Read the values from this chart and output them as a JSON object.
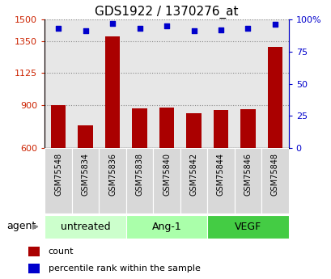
{
  "title": "GDS1922 / 1370276_at",
  "samples": [
    "GSM75548",
    "GSM75834",
    "GSM75836",
    "GSM75838",
    "GSM75840",
    "GSM75842",
    "GSM75844",
    "GSM75846",
    "GSM75848"
  ],
  "counts": [
    900,
    760,
    1380,
    875,
    880,
    845,
    865,
    870,
    1310
  ],
  "percentiles": [
    93,
    91,
    97,
    93,
    95,
    91,
    92,
    93,
    96
  ],
  "groups": [
    {
      "label": "untreated",
      "color": "#ccffcc",
      "start": 0,
      "end": 3
    },
    {
      "label": "Ang-1",
      "color": "#aaffaa",
      "start": 3,
      "end": 6
    },
    {
      "label": "VEGF",
      "color": "#44cc44",
      "start": 6,
      "end": 9
    }
  ],
  "ylim_left": [
    600,
    1500
  ],
  "yticks_left": [
    600,
    900,
    1125,
    1350,
    1500
  ],
  "ylim_right": [
    0,
    100
  ],
  "yticks_right": [
    0,
    25,
    50,
    75,
    100
  ],
  "bar_color": "#aa0000",
  "dot_color": "#0000cc",
  "bar_width": 0.55,
  "col_bg_color": "#d8d8d8",
  "agent_label": "agent",
  "legend_count_label": "count",
  "legend_percentile_label": "percentile rank within the sample"
}
